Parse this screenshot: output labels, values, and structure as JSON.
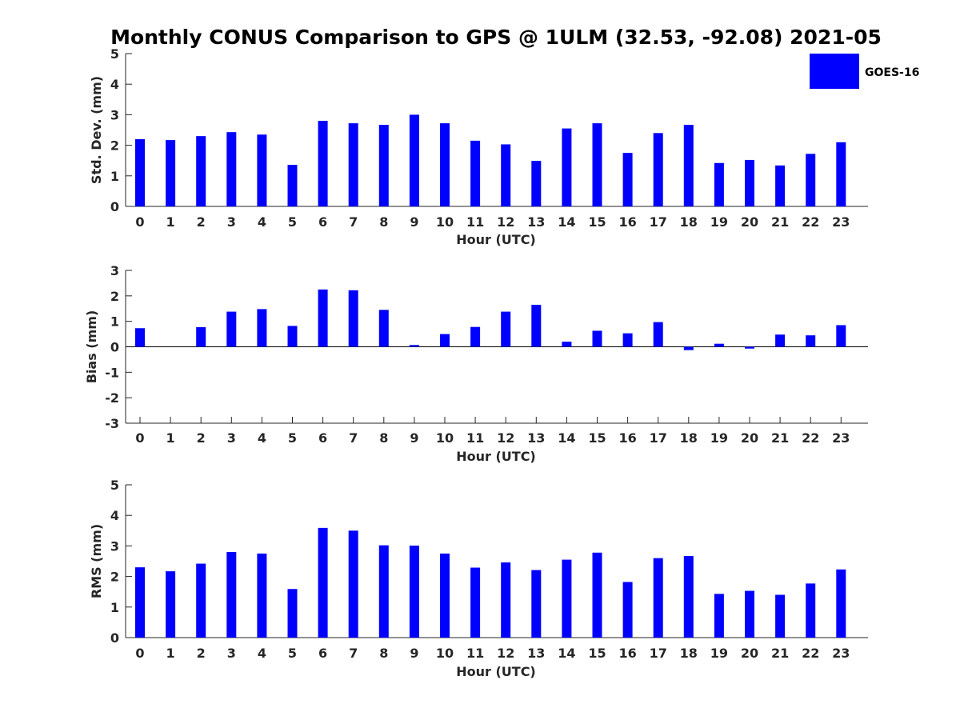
{
  "chart_data": {
    "type": "bar",
    "title": "Monthly CONUS Comparison to GPS @ 1ULM (32.53, -92.08) 2021-05",
    "bar_color": "#0000ff",
    "legend": {
      "position": "top-right",
      "entries": [
        "GOES-16"
      ]
    },
    "grid": false,
    "categories": [
      "0",
      "1",
      "2",
      "3",
      "4",
      "5",
      "6",
      "7",
      "8",
      "9",
      "10",
      "11",
      "12",
      "13",
      "14",
      "15",
      "16",
      "17",
      "18",
      "19",
      "20",
      "21",
      "22",
      "23"
    ],
    "panels": [
      {
        "xlabel": "Hour (UTC)",
        "ylabel": "Std. Dev. (mm)",
        "ylim": [
          0,
          5
        ],
        "yticks": [
          "0",
          "1",
          "2",
          "3",
          "4",
          "5"
        ],
        "series": [
          {
            "name": "GOES-16",
            "values": [
              2.2,
              2.17,
              2.3,
              2.43,
              2.35,
              1.36,
              2.8,
              2.72,
              2.67,
              3.0,
              2.72,
              2.15,
              2.03,
              1.49,
              2.55,
              2.72,
              1.75,
              2.4,
              2.67,
              1.42,
              1.52,
              1.34,
              1.72,
              2.1
            ]
          }
        ]
      },
      {
        "xlabel": "Hour (UTC)",
        "ylabel": "Bias (mm)",
        "ylim": [
          -3,
          3
        ],
        "yticks": [
          "-3",
          "-2",
          "-1",
          "0",
          "1",
          "2",
          "3"
        ],
        "series": [
          {
            "name": "GOES-16",
            "values": [
              0.73,
              0.0,
              0.77,
              1.38,
              1.48,
              0.82,
              2.25,
              2.22,
              1.45,
              0.07,
              0.5,
              0.78,
              1.38,
              1.65,
              0.2,
              0.63,
              0.53,
              0.97,
              -0.13,
              0.12,
              -0.07,
              0.48,
              0.45,
              0.85
            ]
          }
        ]
      },
      {
        "xlabel": "Hour (UTC)",
        "ylabel": "RMS (mm)",
        "ylim": [
          0,
          5
        ],
        "yticks": [
          "0",
          "1",
          "2",
          "3",
          "4",
          "5"
        ],
        "series": [
          {
            "name": "GOES-16",
            "values": [
              2.3,
              2.17,
              2.42,
              2.8,
              2.75,
              1.59,
              3.59,
              3.5,
              3.02,
              3.01,
              2.75,
              2.29,
              2.46,
              2.21,
              2.55,
              2.78,
              1.82,
              2.6,
              2.67,
              1.43,
              1.53,
              1.4,
              1.77,
              2.23
            ]
          }
        ]
      }
    ]
  }
}
